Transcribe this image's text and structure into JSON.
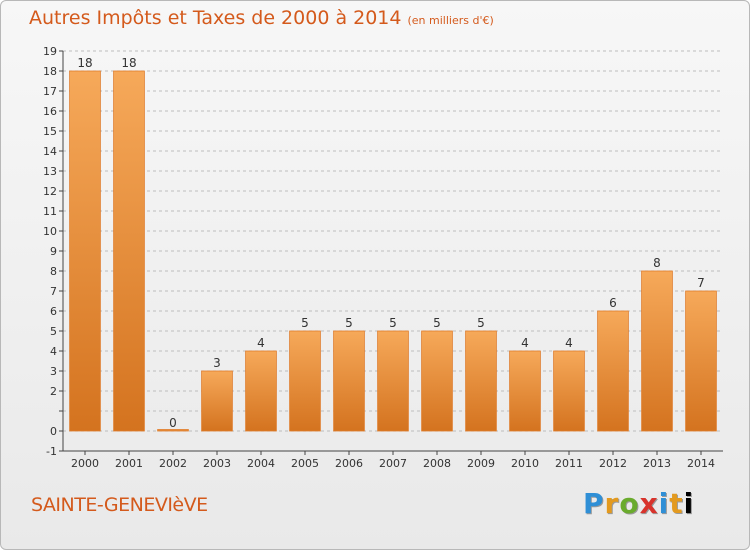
{
  "title": "Autres Impôts et Taxes de 2000 à 2014",
  "subtitle": "(en milliers d'€)",
  "commune": "SAINTE-GENEVIèVE",
  "logo_letters": [
    "P",
    "r",
    "o",
    "x",
    "i",
    "t",
    "i"
  ],
  "colors": {
    "title": "#d45a1c",
    "bar_light": "#f6a95a",
    "bar_dark": "#d4731f",
    "grid": "#bdbdbd"
  },
  "chart_data": {
    "type": "bar",
    "categories": [
      "2000",
      "2001",
      "2002",
      "2003",
      "2004",
      "2005",
      "2006",
      "2007",
      "2008",
      "2009",
      "2010",
      "2011",
      "2012",
      "2013",
      "2014"
    ],
    "values": [
      18,
      18,
      0,
      3,
      4,
      5,
      5,
      5,
      5,
      5,
      4,
      4,
      6,
      8,
      7
    ],
    "y_tick_labels": [
      "-1",
      "0",
      "",
      "2",
      "3",
      "4",
      "5",
      "6",
      "7",
      "8",
      "9",
      "10",
      "11",
      "12",
      "13",
      "14",
      "15",
      "16",
      "17",
      "18",
      "19"
    ],
    "ylim": [
      -1,
      19
    ],
    "grid": true,
    "grid_style": "dashed horizontal"
  }
}
